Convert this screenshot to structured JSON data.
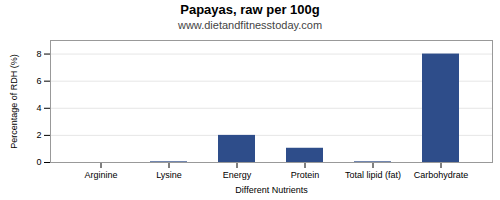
{
  "chart_data": {
    "type": "bar",
    "title": "Papayas, raw per 100g",
    "subtitle": "www.dietandfitnesstoday.com",
    "xlabel": "Different Nutrients",
    "ylabel": "Percentage of RDH (%)",
    "categories": [
      "Arginine",
      "Lysine",
      "Energy",
      "Protein",
      "Total lipid (fat)",
      "Carbohydrate"
    ],
    "values": [
      0.0,
      0.05,
      2.0,
      1.05,
      0.05,
      8.0
    ],
    "color": "#2e4d8a",
    "ylim": [
      0,
      9
    ],
    "yticks": [
      0,
      2,
      4,
      6,
      8
    ],
    "grid": true
  }
}
